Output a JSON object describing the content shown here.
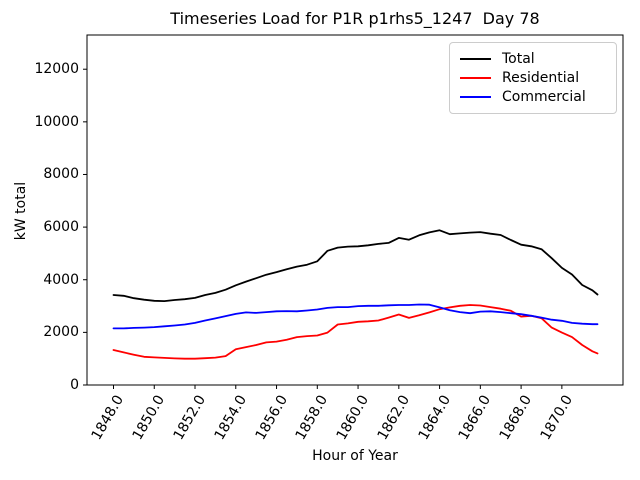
{
  "figure": {
    "title": "Timeseries Load for P1R p1rhs5_1247  Day 78",
    "xlabel": "Hour of Year",
    "ylabel": "kW total"
  },
  "chart_data": {
    "type": "line",
    "title": "Timeseries Load for P1R p1rhs5_1247  Day 78",
    "xlabel": "Hour of Year",
    "ylabel": "kW total",
    "grid": false,
    "xlim": [
      1846.7,
      1873.0
    ],
    "ylim": [
      0,
      13300
    ],
    "xticks": {
      "values": [
        1848,
        1850,
        1852,
        1854,
        1856,
        1858,
        1860,
        1862,
        1864,
        1866,
        1868,
        1870
      ],
      "labels": [
        "1848.0",
        "1850.0",
        "1852.0",
        "1854.0",
        "1856.0",
        "1858.0",
        "1860.0",
        "1862.0",
        "1864.0",
        "1866.0",
        "1868.0",
        "1870.0"
      ],
      "rotation_deg": 60
    },
    "yticks": {
      "values": [
        0,
        2000,
        4000,
        6000,
        8000,
        10000,
        12000
      ],
      "labels": [
        "0",
        "2000",
        "4000",
        "6000",
        "8000",
        "10000",
        "12000"
      ]
    },
    "legend": {
      "position": "upper right",
      "entries": [
        "Total",
        "Residential",
        "Commercial"
      ]
    },
    "x": [
      1848,
      1848.5,
      1849,
      1849.5,
      1850,
      1850.5,
      1851,
      1851.5,
      1852,
      1852.5,
      1853,
      1853.5,
      1854,
      1854.5,
      1855,
      1855.5,
      1856,
      1856.5,
      1857,
      1857.5,
      1858,
      1858.5,
      1859,
      1859.5,
      1860,
      1860.5,
      1861,
      1861.5,
      1862,
      1862.5,
      1863,
      1863.5,
      1864,
      1864.5,
      1865,
      1865.5,
      1866,
      1866.5,
      1867,
      1867.5,
      1868,
      1868.5,
      1869,
      1869.5,
      1870,
      1870.5,
      1871,
      1871.5,
      1871.75
    ],
    "series": [
      {
        "name": "Total",
        "color": "#000000",
        "values": [
          3420,
          3390,
          3300,
          3240,
          3200,
          3190,
          3230,
          3260,
          3310,
          3420,
          3500,
          3620,
          3790,
          3930,
          4060,
          4190,
          4290,
          4400,
          4500,
          4570,
          4700,
          5100,
          5220,
          5260,
          5270,
          5310,
          5360,
          5400,
          5590,
          5520,
          5690,
          5800,
          5880,
          5730,
          5760,
          5790,
          5810,
          5750,
          5700,
          5510,
          5330,
          5270,
          5160,
          4820,
          4450,
          4200,
          3800,
          3600,
          3440
        ]
      },
      {
        "name": "Residential",
        "color": "#ff0000",
        "values": [
          1330,
          1240,
          1150,
          1070,
          1050,
          1030,
          1010,
          1000,
          1000,
          1020,
          1040,
          1100,
          1360,
          1440,
          1520,
          1620,
          1650,
          1720,
          1820,
          1860,
          1880,
          1990,
          2300,
          2340,
          2400,
          2420,
          2450,
          2560,
          2680,
          2550,
          2650,
          2760,
          2880,
          2950,
          3010,
          3040,
          3020,
          2960,
          2900,
          2820,
          2600,
          2630,
          2540,
          2180,
          1990,
          1820,
          1520,
          1280,
          1200
        ]
      },
      {
        "name": "Commercial",
        "color": "#0000ff",
        "values": [
          2150,
          2150,
          2170,
          2180,
          2200,
          2230,
          2260,
          2300,
          2360,
          2450,
          2530,
          2620,
          2700,
          2760,
          2740,
          2770,
          2800,
          2810,
          2800,
          2830,
          2870,
          2930,
          2960,
          2960,
          3000,
          3010,
          3010,
          3030,
          3040,
          3040,
          3060,
          3050,
          2950,
          2840,
          2770,
          2730,
          2790,
          2800,
          2770,
          2730,
          2690,
          2630,
          2560,
          2480,
          2440,
          2360,
          2330,
          2310,
          2310
        ]
      }
    ]
  }
}
